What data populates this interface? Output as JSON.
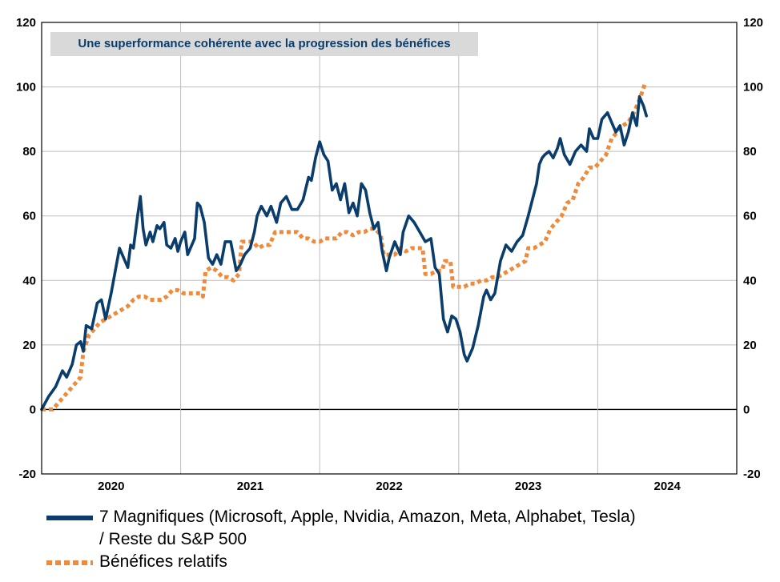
{
  "chart_data": {
    "type": "line",
    "title": "Une superformance cohérente avec la progression des bénéfices",
    "xlabel": "",
    "ylabel": "",
    "ylim": [
      -20,
      120
    ],
    "yticks": [
      "120",
      "100",
      "80",
      "60",
      "40",
      "20",
      "0",
      "-20"
    ],
    "xticks": [
      "2020",
      "2021",
      "2022",
      "2023",
      "2024"
    ],
    "xlim": [
      2019.5,
      2024.5
    ],
    "grid": true,
    "legend_position": "bottom",
    "series": [
      {
        "name": "7 Magnifiques (Microsoft, Apple, Nvidia, Amazon, Meta, Alphabet, Tesla) / Reste du S&P 500",
        "style": "solid",
        "color": "#0a3d6b",
        "points": [
          [
            2019.5,
            0
          ],
          [
            2019.55,
            4
          ],
          [
            2019.6,
            7
          ],
          [
            2019.65,
            12
          ],
          [
            2019.68,
            10
          ],
          [
            2019.72,
            14
          ],
          [
            2019.75,
            20
          ],
          [
            2019.78,
            21
          ],
          [
            2019.8,
            18
          ],
          [
            2019.82,
            26
          ],
          [
            2019.86,
            25
          ],
          [
            2019.9,
            33
          ],
          [
            2019.93,
            34
          ],
          [
            2019.96,
            28
          ],
          [
            2020.0,
            36
          ],
          [
            2020.03,
            43
          ],
          [
            2020.06,
            50
          ],
          [
            2020.09,
            47
          ],
          [
            2020.12,
            44
          ],
          [
            2020.14,
            51
          ],
          [
            2020.16,
            50
          ],
          [
            2020.19,
            60
          ],
          [
            2020.21,
            66
          ],
          [
            2020.23,
            56
          ],
          [
            2020.25,
            51
          ],
          [
            2020.28,
            55
          ],
          [
            2020.3,
            52
          ],
          [
            2020.33,
            57
          ],
          [
            2020.35,
            56
          ],
          [
            2020.38,
            58
          ],
          [
            2020.4,
            51
          ],
          [
            2020.43,
            50
          ],
          [
            2020.46,
            53
          ],
          [
            2020.48,
            49
          ],
          [
            2020.5,
            52
          ],
          [
            2020.53,
            55
          ],
          [
            2020.55,
            48
          ],
          [
            2020.57,
            50
          ],
          [
            2020.6,
            53
          ],
          [
            2020.62,
            64
          ],
          [
            2020.64,
            63
          ],
          [
            2020.67,
            58
          ],
          [
            2020.7,
            47
          ],
          [
            2020.73,
            45
          ],
          [
            2020.76,
            48
          ],
          [
            2020.79,
            45
          ],
          [
            2020.82,
            52
          ],
          [
            2020.86,
            52
          ],
          [
            2020.9,
            43
          ],
          [
            2020.93,
            45
          ],
          [
            2020.96,
            48
          ],
          [
            2021.0,
            50
          ],
          [
            2021.03,
            55
          ],
          [
            2021.05,
            60
          ],
          [
            2021.08,
            63
          ],
          [
            2021.12,
            60
          ],
          [
            2021.15,
            63
          ],
          [
            2021.19,
            58
          ],
          [
            2021.22,
            64
          ],
          [
            2021.26,
            66
          ],
          [
            2021.3,
            62
          ],
          [
            2021.34,
            62
          ],
          [
            2021.38,
            65
          ],
          [
            2021.42,
            72
          ],
          [
            2021.44,
            71
          ],
          [
            2021.47,
            78
          ],
          [
            2021.5,
            83
          ],
          [
            2021.53,
            79
          ],
          [
            2021.56,
            77
          ],
          [
            2021.59,
            68
          ],
          [
            2021.62,
            70
          ],
          [
            2021.65,
            65
          ],
          [
            2021.68,
            70
          ],
          [
            2021.71,
            61
          ],
          [
            2021.74,
            64
          ],
          [
            2021.77,
            60
          ],
          [
            2021.8,
            70
          ],
          [
            2021.83,
            68
          ],
          [
            2021.86,
            61
          ],
          [
            2021.89,
            56
          ],
          [
            2021.92,
            58
          ],
          [
            2021.95,
            49
          ],
          [
            2021.98,
            43
          ],
          [
            2022.0,
            47
          ],
          [
            2022.04,
            52
          ],
          [
            2022.08,
            48
          ],
          [
            2022.1,
            55
          ],
          [
            2022.14,
            60
          ],
          [
            2022.18,
            58
          ],
          [
            2022.22,
            55
          ],
          [
            2022.26,
            52
          ],
          [
            2022.3,
            53
          ],
          [
            2022.33,
            44
          ],
          [
            2022.36,
            42
          ],
          [
            2022.39,
            28
          ],
          [
            2022.42,
            24
          ],
          [
            2022.45,
            29
          ],
          [
            2022.48,
            28
          ],
          [
            2022.51,
            24
          ],
          [
            2022.54,
            17
          ],
          [
            2022.56,
            15
          ],
          [
            2022.6,
            19
          ],
          [
            2022.64,
            26
          ],
          [
            2022.68,
            35
          ],
          [
            2022.7,
            37
          ],
          [
            2022.73,
            34
          ],
          [
            2022.76,
            36
          ],
          [
            2022.8,
            46
          ],
          [
            2022.84,
            51
          ],
          [
            2022.88,
            49
          ],
          [
            2022.92,
            52
          ],
          [
            2022.96,
            54
          ],
          [
            2023.0,
            60
          ],
          [
            2023.03,
            65
          ],
          [
            2023.06,
            70
          ],
          [
            2023.08,
            76
          ],
          [
            2023.1,
            78
          ],
          [
            2023.12,
            79
          ],
          [
            2023.15,
            80
          ],
          [
            2023.18,
            78
          ],
          [
            2023.21,
            81
          ],
          [
            2023.23,
            84
          ],
          [
            2023.26,
            79
          ],
          [
            2023.3,
            76
          ],
          [
            2023.34,
            80
          ],
          [
            2023.38,
            82
          ],
          [
            2023.42,
            80
          ],
          [
            2023.44,
            87
          ],
          [
            2023.47,
            84
          ],
          [
            2023.5,
            84
          ],
          [
            2023.53,
            90
          ],
          [
            2023.57,
            92
          ],
          [
            2023.6,
            89
          ],
          [
            2023.63,
            86
          ],
          [
            2023.66,
            88
          ],
          [
            2023.69,
            82
          ],
          [
            2023.72,
            86
          ],
          [
            2023.75,
            92
          ],
          [
            2023.78,
            88
          ],
          [
            2023.8,
            97
          ],
          [
            2023.83,
            94
          ],
          [
            2023.85,
            91
          ]
        ]
      },
      {
        "name": "Bénéfices relatifs",
        "style": "dotted",
        "color": "#ef8a3a",
        "points": [
          [
            2019.5,
            0
          ],
          [
            2019.58,
            0
          ],
          [
            2019.62,
            2
          ],
          [
            2019.66,
            4
          ],
          [
            2019.7,
            6
          ],
          [
            2019.74,
            8
          ],
          [
            2019.78,
            10
          ],
          [
            2019.8,
            18
          ],
          [
            2019.84,
            23
          ],
          [
            2019.88,
            25
          ],
          [
            2019.92,
            27
          ],
          [
            2019.96,
            28
          ],
          [
            2020.0,
            29
          ],
          [
            2020.04,
            30
          ],
          [
            2020.08,
            31
          ],
          [
            2020.12,
            32
          ],
          [
            2020.16,
            34
          ],
          [
            2020.2,
            35
          ],
          [
            2020.24,
            35
          ],
          [
            2020.28,
            34
          ],
          [
            2020.32,
            34
          ],
          [
            2020.36,
            34
          ],
          [
            2020.4,
            35
          ],
          [
            2020.44,
            37
          ],
          [
            2020.48,
            37
          ],
          [
            2020.52,
            36
          ],
          [
            2020.56,
            36
          ],
          [
            2020.6,
            36
          ],
          [
            2020.64,
            36
          ],
          [
            2020.66,
            35
          ],
          [
            2020.68,
            43
          ],
          [
            2020.72,
            44
          ],
          [
            2020.76,
            43
          ],
          [
            2020.8,
            41
          ],
          [
            2020.84,
            41
          ],
          [
            2020.88,
            40
          ],
          [
            2020.92,
            42
          ],
          [
            2020.94,
            52
          ],
          [
            2020.98,
            52
          ],
          [
            2021.02,
            52
          ],
          [
            2021.06,
            50
          ],
          [
            2021.1,
            51
          ],
          [
            2021.14,
            51
          ],
          [
            2021.18,
            55
          ],
          [
            2021.22,
            55
          ],
          [
            2021.26,
            55
          ],
          [
            2021.3,
            55
          ],
          [
            2021.34,
            55
          ],
          [
            2021.38,
            53
          ],
          [
            2021.42,
            53
          ],
          [
            2021.46,
            52
          ],
          [
            2021.5,
            52
          ],
          [
            2021.54,
            53
          ],
          [
            2021.58,
            53
          ],
          [
            2021.62,
            53
          ],
          [
            2021.66,
            55
          ],
          [
            2021.7,
            55
          ],
          [
            2021.74,
            54
          ],
          [
            2021.78,
            55
          ],
          [
            2021.82,
            55
          ],
          [
            2021.86,
            56
          ],
          [
            2021.9,
            56
          ],
          [
            2021.94,
            54
          ],
          [
            2021.96,
            48
          ],
          [
            2022.0,
            48
          ],
          [
            2022.04,
            48
          ],
          [
            2022.08,
            50
          ],
          [
            2022.12,
            49
          ],
          [
            2022.16,
            50
          ],
          [
            2022.2,
            50
          ],
          [
            2022.24,
            50
          ],
          [
            2022.26,
            42
          ],
          [
            2022.3,
            42
          ],
          [
            2022.34,
            43
          ],
          [
            2022.38,
            43
          ],
          [
            2022.4,
            46
          ],
          [
            2022.44,
            46
          ],
          [
            2022.46,
            38
          ],
          [
            2022.5,
            38
          ],
          [
            2022.54,
            38
          ],
          [
            2022.58,
            39
          ],
          [
            2022.62,
            39
          ],
          [
            2022.66,
            40
          ],
          [
            2022.7,
            40
          ],
          [
            2022.74,
            41
          ],
          [
            2022.78,
            41
          ],
          [
            2022.82,
            42
          ],
          [
            2022.86,
            43
          ],
          [
            2022.9,
            44
          ],
          [
            2022.94,
            45
          ],
          [
            2022.98,
            46
          ],
          [
            2023.0,
            50
          ],
          [
            2023.04,
            50
          ],
          [
            2023.08,
            51
          ],
          [
            2023.12,
            52
          ],
          [
            2023.16,
            56
          ],
          [
            2023.2,
            58
          ],
          [
            2023.24,
            60
          ],
          [
            2023.28,
            64
          ],
          [
            2023.32,
            65
          ],
          [
            2023.36,
            70
          ],
          [
            2023.4,
            72
          ],
          [
            2023.44,
            75
          ],
          [
            2023.48,
            75
          ],
          [
            2023.52,
            77
          ],
          [
            2023.56,
            79
          ],
          [
            2023.6,
            84
          ],
          [
            2023.64,
            86
          ],
          [
            2023.68,
            88
          ],
          [
            2023.72,
            89
          ],
          [
            2023.76,
            92
          ],
          [
            2023.8,
            96
          ],
          [
            2023.84,
            101
          ]
        ]
      }
    ]
  },
  "legend": {
    "items": [
      {
        "label_line1": "7 Magnifiques (Microsoft, Apple, Nvidia, Amazon, Meta, Alphabet, Tesla)",
        "label_line2": "/ Reste du S&P 500"
      },
      {
        "label_line1": "Bénéfices relatifs"
      }
    ]
  }
}
